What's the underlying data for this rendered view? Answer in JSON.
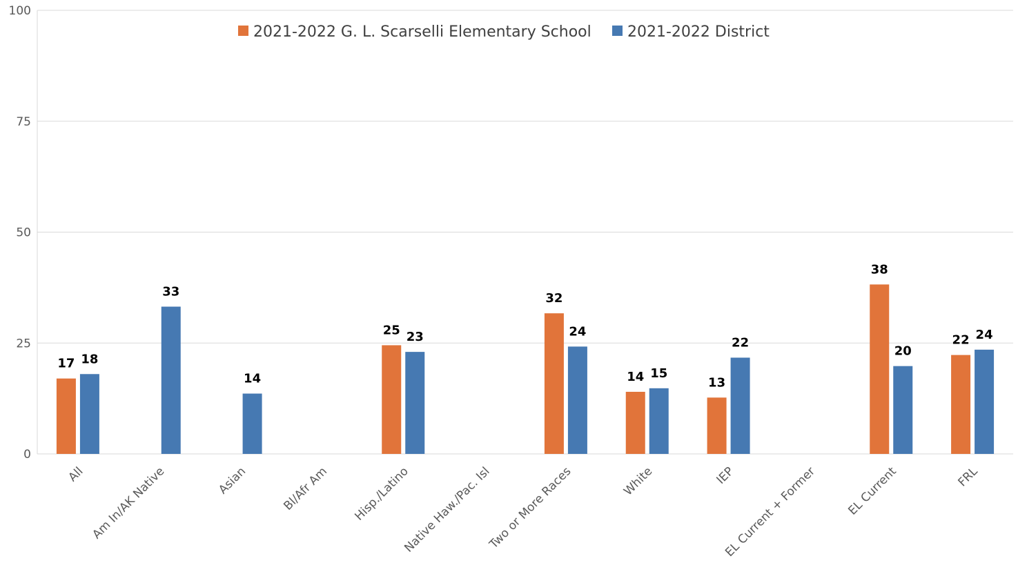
{
  "chart_data": {
    "type": "bar",
    "categories": [
      "All",
      "Am In/AK Native",
      "Asian",
      "Bl/Afr Am",
      "Hisp./Latino",
      "Native Haw./Pac. Isl",
      "Two or More Races",
      "White",
      "IEP",
      "EL Current + Former",
      "EL Current",
      "FRL"
    ],
    "series": [
      {
        "name": "2021-2022 G. L. Scarselli Elementary School",
        "color": "#E1743A",
        "values": [
          17,
          null,
          null,
          null,
          24.5,
          null,
          31.7,
          14,
          12.7,
          null,
          38.2,
          22.3
        ],
        "labels": [
          "17",
          "",
          "",
          "",
          "25",
          "",
          "32",
          "14",
          "13",
          "",
          "38",
          "22"
        ]
      },
      {
        "name": "2021-2022 District",
        "color": "#4679B2",
        "values": [
          18,
          33.2,
          13.6,
          null,
          23,
          null,
          24.2,
          14.8,
          21.7,
          null,
          19.8,
          23.5
        ],
        "labels": [
          "18",
          "33",
          "14",
          "",
          "23",
          "",
          "24",
          "15",
          "22",
          "",
          "20",
          "24"
        ]
      }
    ],
    "yticks": [
      "0",
      "25",
      "50",
      "75",
      "100"
    ],
    "ylim": [
      0,
      100
    ],
    "grid": true,
    "legend_position": "top-center"
  }
}
